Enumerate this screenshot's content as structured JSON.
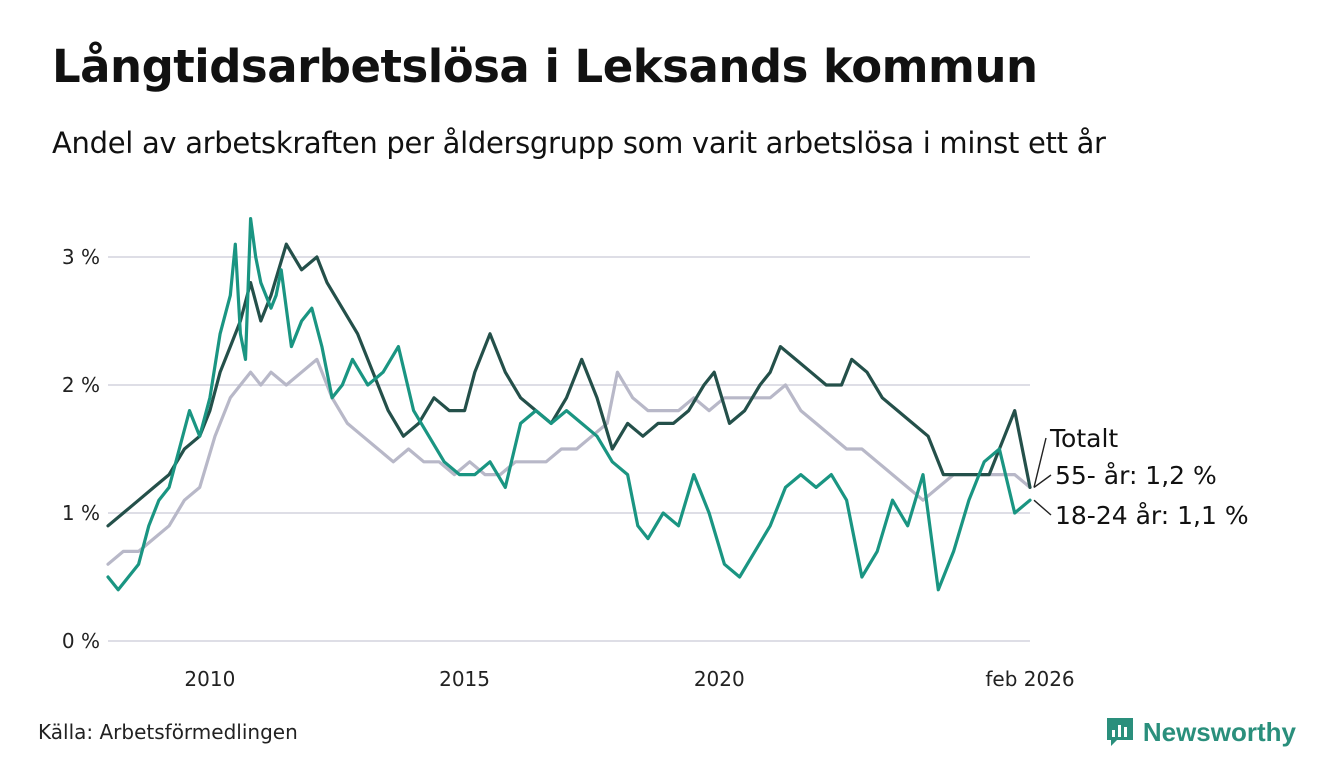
{
  "title": "Långtidsarbetslösa i Leksands kommun",
  "subtitle": "Andel av arbetskraften per åldersgrupp som varit arbetslösa i minst ett år",
  "source": "Källa: Arbetsförmedlingen",
  "brand": {
    "name": "Newsworthy",
    "icon": "bar-chart-icon",
    "color": "#2a8f7c"
  },
  "chart_data": {
    "type": "line",
    "title": "Långtidsarbetslösa i Leksands kommun",
    "xlabel": "",
    "ylabel": "",
    "xlim": [
      2008.0,
      2026.1
    ],
    "ylim": [
      0,
      3.4
    ],
    "grid": true,
    "y_ticks": [
      {
        "value": 0,
        "label": "0 %"
      },
      {
        "value": 1,
        "label": "1 %"
      },
      {
        "value": 2,
        "label": "2 %"
      },
      {
        "value": 3,
        "label": "3 %"
      }
    ],
    "x_ticks": [
      {
        "value": 2010,
        "label": "2010"
      },
      {
        "value": 2015,
        "label": "2015"
      },
      {
        "value": 2020,
        "label": "2020"
      },
      {
        "value": 2026.1,
        "label": "feb 2026"
      }
    ],
    "series": [
      {
        "name": "Totalt",
        "label": "Totalt",
        "color": "#b8b8c8",
        "x": [
          2008.0,
          2008.3,
          2008.6,
          2008.9,
          2009.2,
          2009.5,
          2009.8,
          2010.1,
          2010.4,
          2010.6,
          2010.8,
          2011.0,
          2011.2,
          2011.5,
          2011.8,
          2012.1,
          2012.4,
          2012.7,
          2013.0,
          2013.3,
          2013.6,
          2013.9,
          2014.2,
          2014.5,
          2014.8,
          2015.1,
          2015.4,
          2015.7,
          2016.0,
          2016.3,
          2016.6,
          2016.9,
          2017.2,
          2017.5,
          2017.8,
          2018.0,
          2018.3,
          2018.6,
          2018.9,
          2019.2,
          2019.5,
          2019.8,
          2020.1,
          2020.4,
          2020.7,
          2021.0,
          2021.3,
          2021.6,
          2021.9,
          2022.2,
          2022.5,
          2022.8,
          2023.1,
          2023.4,
          2023.7,
          2024.0,
          2024.3,
          2024.6,
          2024.9,
          2025.2,
          2025.5,
          2025.8,
          2026.1
        ],
        "values": [
          0.6,
          0.7,
          0.7,
          0.8,
          0.9,
          1.1,
          1.2,
          1.6,
          1.9,
          2.0,
          2.1,
          2.0,
          2.1,
          2.0,
          2.1,
          2.2,
          1.9,
          1.7,
          1.6,
          1.5,
          1.4,
          1.5,
          1.4,
          1.4,
          1.3,
          1.4,
          1.3,
          1.3,
          1.4,
          1.4,
          1.4,
          1.5,
          1.5,
          1.6,
          1.7,
          2.1,
          1.9,
          1.8,
          1.8,
          1.8,
          1.9,
          1.8,
          1.9,
          1.9,
          1.9,
          1.9,
          2.0,
          1.8,
          1.7,
          1.6,
          1.5,
          1.5,
          1.4,
          1.3,
          1.2,
          1.1,
          1.2,
          1.3,
          1.3,
          1.3,
          1.3,
          1.3,
          1.2
        ]
      },
      {
        "name": "55- år",
        "label": "55- år: 1,2 %",
        "color": "#24504a",
        "x": [
          2008.0,
          2008.3,
          2008.6,
          2008.9,
          2009.2,
          2009.5,
          2009.8,
          2010.0,
          2010.2,
          2010.4,
          2010.6,
          2010.8,
          2011.0,
          2011.2,
          2011.5,
          2011.8,
          2012.1,
          2012.3,
          2012.6,
          2012.9,
          2013.2,
          2013.5,
          2013.8,
          2014.1,
          2014.4,
          2014.7,
          2015.0,
          2015.2,
          2015.5,
          2015.8,
          2016.1,
          2016.4,
          2016.7,
          2017.0,
          2017.3,
          2017.6,
          2017.9,
          2018.2,
          2018.5,
          2018.8,
          2019.1,
          2019.4,
          2019.7,
          2019.9,
          2020.2,
          2020.5,
          2020.8,
          2021.0,
          2021.2,
          2021.5,
          2021.8,
          2022.1,
          2022.4,
          2022.6,
          2022.9,
          2023.2,
          2023.5,
          2023.8,
          2024.1,
          2024.4,
          2024.7,
          2025.0,
          2025.3,
          2025.6,
          2025.8,
          2026.1
        ],
        "values": [
          0.9,
          1.0,
          1.1,
          1.2,
          1.3,
          1.5,
          1.6,
          1.8,
          2.1,
          2.3,
          2.5,
          2.8,
          2.5,
          2.7,
          3.1,
          2.9,
          3.0,
          2.8,
          2.6,
          2.4,
          2.1,
          1.8,
          1.6,
          1.7,
          1.9,
          1.8,
          1.8,
          2.1,
          2.4,
          2.1,
          1.9,
          1.8,
          1.7,
          1.9,
          2.2,
          1.9,
          1.5,
          1.7,
          1.6,
          1.7,
          1.7,
          1.8,
          2.0,
          2.1,
          1.7,
          1.8,
          2.0,
          2.1,
          2.3,
          2.2,
          2.1,
          2.0,
          2.0,
          2.2,
          2.1,
          1.9,
          1.8,
          1.7,
          1.6,
          1.3,
          1.3,
          1.3,
          1.3,
          1.6,
          1.8,
          1.2
        ]
      },
      {
        "name": "18-24 år",
        "label": "18-24 år: 1,1 %",
        "color": "#1a9582",
        "x": [
          2008.0,
          2008.2,
          2008.4,
          2008.6,
          2008.8,
          2009.0,
          2009.2,
          2009.4,
          2009.6,
          2009.8,
          2010.0,
          2010.2,
          2010.4,
          2010.5,
          2010.6,
          2010.7,
          2010.8,
          2010.9,
          2011.0,
          2011.1,
          2011.2,
          2011.3,
          2011.4,
          2011.5,
          2011.6,
          2011.8,
          2012.0,
          2012.2,
          2012.4,
          2012.6,
          2012.8,
          2013.1,
          2013.4,
          2013.7,
          2014.0,
          2014.3,
          2014.6,
          2014.9,
          2015.2,
          2015.5,
          2015.8,
          2016.1,
          2016.4,
          2016.7,
          2017.0,
          2017.3,
          2017.6,
          2017.9,
          2018.2,
          2018.4,
          2018.6,
          2018.9,
          2019.2,
          2019.5,
          2019.8,
          2020.1,
          2020.4,
          2020.7,
          2021.0,
          2021.3,
          2021.6,
          2021.9,
          2022.2,
          2022.5,
          2022.8,
          2023.1,
          2023.4,
          2023.7,
          2024.0,
          2024.3,
          2024.6,
          2024.9,
          2025.2,
          2025.5,
          2025.8,
          2026.1
        ],
        "values": [
          0.5,
          0.4,
          0.5,
          0.6,
          0.9,
          1.1,
          1.2,
          1.5,
          1.8,
          1.6,
          1.9,
          2.4,
          2.7,
          3.1,
          2.4,
          2.2,
          3.3,
          3.0,
          2.8,
          2.7,
          2.6,
          2.7,
          2.9,
          2.6,
          2.3,
          2.5,
          2.6,
          2.3,
          1.9,
          2.0,
          2.2,
          2.0,
          2.1,
          2.3,
          1.8,
          1.6,
          1.4,
          1.3,
          1.3,
          1.4,
          1.2,
          1.7,
          1.8,
          1.7,
          1.8,
          1.7,
          1.6,
          1.4,
          1.3,
          0.9,
          0.8,
          1.0,
          0.9,
          1.3,
          1.0,
          0.6,
          0.5,
          0.7,
          0.9,
          1.2,
          1.3,
          1.2,
          1.3,
          1.1,
          0.5,
          0.7,
          1.1,
          0.9,
          1.3,
          0.4,
          0.7,
          1.1,
          1.4,
          1.5,
          1.0,
          1.1
        ]
      }
    ]
  }
}
